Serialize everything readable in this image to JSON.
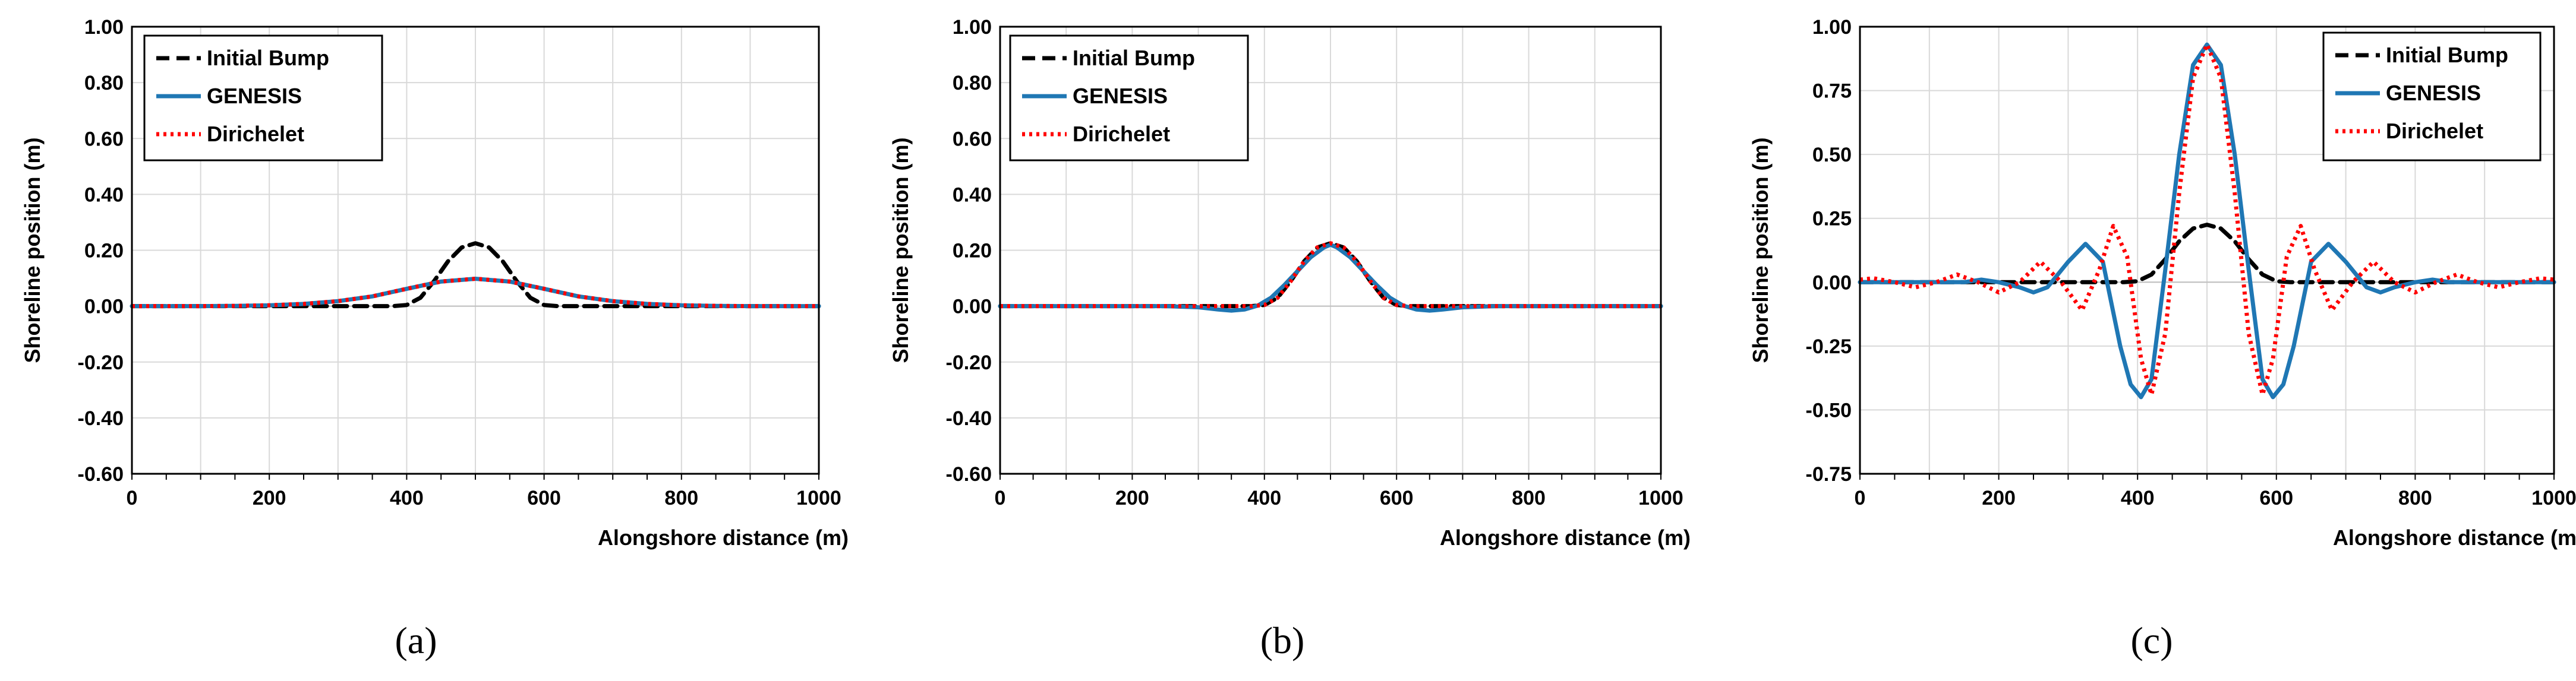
{
  "colors": {
    "initial": "#000000",
    "genesis": "#1f77b4",
    "dirichelet": "#ff0000"
  },
  "chart_data": [
    {
      "type": "line",
      "panel_label": "(a)",
      "xlabel": "Alongshore distance (m)",
      "ylabel": "Shoreline position (m)",
      "xlim": [
        0,
        1000
      ],
      "ylim": [
        -0.6,
        1.0
      ],
      "xticks": [
        0,
        200,
        400,
        600,
        800,
        1000
      ],
      "yticks": [
        -0.6,
        -0.4,
        -0.2,
        0.0,
        0.2,
        0.4,
        0.6,
        0.8,
        1.0
      ],
      "xtick_labels": [
        "0",
        "200",
        "400",
        "600",
        "800",
        "1000"
      ],
      "ytick_labels": [
        "-0.60",
        "-0.40",
        "-0.20",
        "0.00",
        "0.20",
        "0.40",
        "0.60",
        "0.80",
        "1.00"
      ],
      "legend": [
        "Initial Bump",
        "GENESIS",
        "Dirichelet"
      ],
      "legend_position": "top-left",
      "series": [
        {
          "name": "Initial Bump",
          "style": "dashed",
          "x": [
            0,
            250,
            300,
            350,
            380,
            400,
            420,
            440,
            460,
            480,
            500,
            520,
            540,
            560,
            580,
            600,
            620,
            650,
            700,
            750,
            1000
          ],
          "values": [
            0,
            0,
            0,
            0,
            0,
            0.004,
            0.03,
            0.09,
            0.16,
            0.21,
            0.225,
            0.21,
            0.16,
            0.09,
            0.03,
            0.004,
            0,
            0,
            0,
            0,
            0
          ]
        },
        {
          "name": "GENESIS",
          "style": "solid",
          "x": [
            0,
            100,
            150,
            200,
            250,
            300,
            350,
            400,
            450,
            500,
            550,
            600,
            650,
            700,
            750,
            800,
            850,
            900,
            1000
          ],
          "values": [
            0,
            0,
            0.001,
            0.003,
            0.008,
            0.018,
            0.035,
            0.062,
            0.088,
            0.098,
            0.088,
            0.062,
            0.035,
            0.018,
            0.008,
            0.003,
            0.001,
            0,
            0
          ]
        },
        {
          "name": "Dirichelet",
          "style": "dotted",
          "x": [
            0,
            100,
            150,
            200,
            250,
            300,
            350,
            400,
            450,
            500,
            550,
            600,
            650,
            700,
            750,
            800,
            850,
            900,
            1000
          ],
          "values": [
            0,
            0,
            0.001,
            0.003,
            0.008,
            0.018,
            0.035,
            0.062,
            0.088,
            0.098,
            0.088,
            0.062,
            0.035,
            0.018,
            0.008,
            0.003,
            0.001,
            0,
            0
          ]
        }
      ]
    },
    {
      "type": "line",
      "panel_label": "(b)",
      "xlabel": "Alongshore distance (m)",
      "ylabel": "Shoreline position (m)",
      "xlim": [
        0,
        1000
      ],
      "ylim": [
        -0.6,
        1.0
      ],
      "xticks": [
        0,
        200,
        400,
        600,
        800,
        1000
      ],
      "yticks": [
        -0.6,
        -0.4,
        -0.2,
        0.0,
        0.2,
        0.4,
        0.6,
        0.8,
        1.0
      ],
      "xtick_labels": [
        "0",
        "200",
        "400",
        "600",
        "800",
        "1000"
      ],
      "ytick_labels": [
        "-0.60",
        "-0.40",
        "-0.20",
        "0.00",
        "0.20",
        "0.40",
        "0.60",
        "0.80",
        "1.00"
      ],
      "legend": [
        "Initial Bump",
        "GENESIS",
        "Dirichelet"
      ],
      "legend_position": "top-left",
      "series": [
        {
          "name": "Initial Bump",
          "style": "dashed",
          "x": [
            0,
            250,
            300,
            350,
            380,
            400,
            420,
            440,
            460,
            480,
            500,
            520,
            540,
            560,
            580,
            600,
            620,
            650,
            700,
            750,
            1000
          ],
          "values": [
            0,
            0,
            0,
            0,
            0,
            0.004,
            0.03,
            0.09,
            0.16,
            0.21,
            0.225,
            0.21,
            0.16,
            0.09,
            0.03,
            0.004,
            0,
            0,
            0,
            0,
            0
          ]
        },
        {
          "name": "GENESIS",
          "style": "solid",
          "x": [
            0,
            250,
            300,
            330,
            350,
            370,
            390,
            410,
            430,
            450,
            470,
            490,
            500,
            510,
            530,
            550,
            570,
            590,
            610,
            630,
            650,
            670,
            700,
            750,
            1000
          ],
          "values": [
            0,
            0,
            -0.004,
            -0.012,
            -0.016,
            -0.012,
            0.002,
            0.03,
            0.075,
            0.125,
            0.175,
            0.21,
            0.22,
            0.21,
            0.175,
            0.125,
            0.075,
            0.03,
            0.002,
            -0.012,
            -0.016,
            -0.012,
            -0.004,
            0,
            0
          ]
        },
        {
          "name": "Dirichelet",
          "style": "dotted",
          "x": [
            0,
            250,
            300,
            350,
            380,
            400,
            420,
            440,
            460,
            480,
            500,
            520,
            540,
            560,
            580,
            600,
            620,
            650,
            700,
            750,
            1000
          ],
          "values": [
            0,
            0,
            0,
            0,
            0,
            0.004,
            0.03,
            0.09,
            0.16,
            0.21,
            0.225,
            0.21,
            0.16,
            0.09,
            0.03,
            0.004,
            0,
            0,
            0,
            0,
            0
          ]
        }
      ]
    },
    {
      "type": "line",
      "panel_label": "(c)",
      "xlabel": "Alongshore distance (m)",
      "ylabel": "Shoreline position (m)",
      "xlim": [
        0,
        1000
      ],
      "ylim": [
        -0.75,
        1.0
      ],
      "xticks": [
        0,
        200,
        400,
        600,
        800,
        1000
      ],
      "yticks": [
        -0.75,
        -0.5,
        -0.25,
        0.0,
        0.25,
        0.5,
        0.75,
        1.0
      ],
      "xtick_labels": [
        "0",
        "200",
        "400",
        "600",
        "800",
        "1000"
      ],
      "ytick_labels": [
        "-0.75",
        "-0.50",
        "-0.25",
        "0.00",
        "0.25",
        "0.50",
        "0.75",
        "1.00"
      ],
      "legend": [
        "Initial Bump",
        "GENESIS",
        "Dirichelet"
      ],
      "legend_position": "top-right",
      "series": [
        {
          "name": "Initial Bump",
          "style": "dashed",
          "x": [
            0,
            250,
            300,
            350,
            380,
            400,
            420,
            440,
            460,
            480,
            500,
            520,
            540,
            560,
            580,
            600,
            620,
            650,
            700,
            750,
            1000
          ],
          "values": [
            0,
            0,
            0,
            0,
            0,
            0.004,
            0.03,
            0.09,
            0.16,
            0.21,
            0.225,
            0.21,
            0.16,
            0.09,
            0.03,
            0.004,
            0,
            0,
            0,
            0,
            0
          ]
        },
        {
          "name": "GENESIS",
          "style": "solid",
          "x": [
            0,
            150,
            175,
            200,
            230,
            250,
            270,
            300,
            325,
            350,
            375,
            390,
            405,
            420,
            440,
            460,
            480,
            500,
            520,
            540,
            560,
            580,
            595,
            610,
            625,
            650,
            675,
            700,
            730,
            750,
            770,
            800,
            825,
            850,
            1000
          ],
          "values": [
            0,
            0,
            0.01,
            0,
            -0.02,
            -0.04,
            -0.02,
            0.08,
            0.15,
            0.08,
            -0.25,
            -0.4,
            -0.45,
            -0.38,
            0.05,
            0.5,
            0.85,
            0.93,
            0.85,
            0.5,
            0.05,
            -0.38,
            -0.45,
            -0.4,
            -0.25,
            0.08,
            0.15,
            0.08,
            -0.02,
            -0.04,
            -0.02,
            0,
            0.01,
            0,
            0
          ]
        },
        {
          "name": "Dirichelet",
          "style": "dotted",
          "x": [
            0,
            20,
            50,
            80,
            110,
            140,
            170,
            200,
            230,
            260,
            290,
            320,
            345,
            365,
            385,
            405,
            420,
            440,
            460,
            480,
            500,
            520,
            540,
            560,
            580,
            595,
            615,
            635,
            655,
            680,
            710,
            740,
            770,
            800,
            830,
            860,
            890,
            920,
            950,
            980,
            1000
          ],
          "values": [
            0.01,
            0.015,
            0,
            -0.02,
            0,
            0.03,
            0,
            -0.04,
            0,
            0.08,
            0,
            -0.11,
            0.05,
            0.22,
            0.1,
            -0.3,
            -0.44,
            -0.2,
            0.35,
            0.8,
            0.93,
            0.8,
            0.35,
            -0.2,
            -0.44,
            -0.3,
            0.1,
            0.22,
            0.05,
            -0.11,
            0,
            0.08,
            0,
            -0.04,
            0,
            0.03,
            0,
            -0.02,
            0,
            0.015,
            0.01
          ]
        }
      ]
    }
  ]
}
